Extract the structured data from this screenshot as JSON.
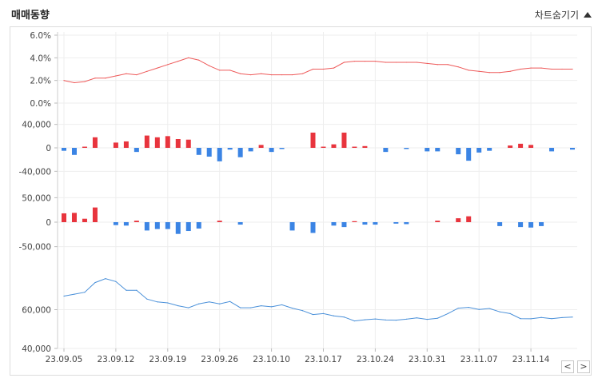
{
  "header": {
    "title": "매매동향",
    "toggle_label": "차트숨기기"
  },
  "colors": {
    "rate_line": "#ee5a5a",
    "positive": "#e8343d",
    "negative": "#3b84e4",
    "price_line": "#4a90d9",
    "grid": "#eeeeee",
    "axis": "#999999"
  },
  "icons": {
    "toggle": "triangle-up-icon",
    "prev": "chevron-left-icon",
    "next": "chevron-right-icon"
  },
  "nav": {
    "prev_label": "<",
    "next_label": ">"
  },
  "chart_data": [
    {
      "type": "line",
      "ylim": [
        0,
        6
      ],
      "yticks": [
        "6.0%",
        "4.0%",
        "2.0%",
        "0.0%"
      ],
      "ytick_values": [
        6,
        4,
        2,
        0
      ],
      "values": [
        2.0,
        1.8,
        1.9,
        2.2,
        2.2,
        2.4,
        2.6,
        2.5,
        2.8,
        3.1,
        3.4,
        3.7,
        4.0,
        3.8,
        3.3,
        2.9,
        2.9,
        2.6,
        2.5,
        2.6,
        2.5,
        2.5,
        2.5,
        2.6,
        3.0,
        3.0,
        3.1,
        3.6,
        3.7,
        3.7,
        3.7,
        3.6,
        3.6,
        3.6,
        3.6,
        3.5,
        3.4,
        3.4,
        3.2,
        2.9,
        2.8,
        2.7,
        2.7,
        2.8,
        3.0,
        3.1,
        3.1,
        3.0,
        3.0,
        3.0
      ]
    },
    {
      "type": "bar",
      "ylim": [
        -60000,
        60000
      ],
      "yticks": [
        "40,000",
        "0",
        "-40,000"
      ],
      "ytick_values": [
        40000,
        0,
        -40000
      ],
      "values": [
        -5000,
        -12000,
        2000,
        18000,
        0,
        9000,
        11000,
        -7000,
        21000,
        18000,
        20000,
        15000,
        14000,
        -12000,
        -15000,
        -23000,
        -3000,
        -16000,
        -6000,
        5000,
        -7000,
        -2000,
        0,
        0,
        26000,
        2000,
        6000,
        26000,
        2000,
        3000,
        0,
        -7000,
        0,
        -2000,
        0,
        -6000,
        -6000,
        0,
        -11000,
        -22000,
        -8000,
        -5000,
        0,
        4000,
        7000,
        5000,
        0,
        -6000,
        0,
        -3000
      ]
    },
    {
      "type": "bar",
      "ylim": [
        -80000,
        80000
      ],
      "yticks": [
        "50,000",
        "0",
        "-50,000"
      ],
      "ytick_values": [
        50000,
        0,
        -50000
      ],
      "values": [
        18000,
        19000,
        7000,
        30000,
        0,
        -6000,
        -7000,
        3000,
        -17000,
        -14000,
        -14000,
        -24000,
        -18000,
        -13000,
        0,
        3000,
        0,
        -5000,
        0,
        0,
        0,
        0,
        -17000,
        0,
        -22000,
        0,
        -7000,
        -10000,
        2000,
        -5000,
        -5000,
        0,
        -3000,
        -4000,
        0,
        0,
        3000,
        0,
        8000,
        12000,
        0,
        0,
        -8000,
        0,
        -10000,
        -11000,
        -8000,
        0,
        0,
        0
      ]
    },
    {
      "type": "line",
      "ylim": [
        40000,
        80000
      ],
      "yticks": [
        "60,000",
        "40,000"
      ],
      "ytick_values": [
        60000,
        40000
      ],
      "values": [
        67000,
        68000,
        69000,
        74000,
        76000,
        74500,
        70000,
        70000,
        65500,
        64000,
        63500,
        62000,
        61000,
        63000,
        64000,
        63000,
        64200,
        61000,
        61000,
        62000,
        61500,
        62500,
        60800,
        59500,
        57500,
        58000,
        56800,
        56200,
        54200,
        54800,
        55200,
        54700,
        54600,
        55100,
        55800,
        55000,
        55600,
        58000,
        60800,
        61200,
        60100,
        60600,
        58900,
        58000,
        55400,
        55300,
        56000,
        55400,
        55900,
        56200
      ]
    }
  ],
  "x_axis": {
    "tick_labels": [
      "23.09.05",
      "23.09.12",
      "23.09.19",
      "23.09.26",
      "23.10.10",
      "23.10.17",
      "23.10.24",
      "23.10.31",
      "23.11.07",
      "23.11.14"
    ],
    "tick_indices": [
      0,
      5,
      10,
      15,
      20,
      25,
      30,
      35,
      40,
      45
    ]
  }
}
